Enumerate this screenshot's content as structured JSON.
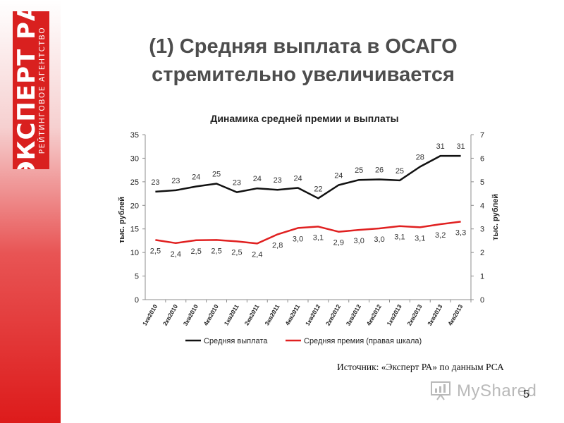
{
  "logo": {
    "main": "ЭКСПЕРТ РА",
    "sub": "РЕЙТИНГОВОЕ АГЕНТСТВО"
  },
  "slide": {
    "title_line1": "(1) Средняя выплата в ОСАГО",
    "title_line2": "стремительно увеличивается",
    "source": "Источник: «Эксперт РА» по данным РСА",
    "page_number": "5",
    "watermark": "MyShared"
  },
  "colors": {
    "brand_red": "#d9201f",
    "series_payout": "#111111",
    "series_premium": "#e02020"
  },
  "chart_data": {
    "type": "line",
    "title": "Динамика средней премии и выплаты",
    "ylabel": "тыс. рублей",
    "y2label": "тыс. рублей",
    "ylim": [
      0,
      35
    ],
    "y_ticks": [
      "0",
      "5",
      "10",
      "15",
      "20",
      "25",
      "30",
      "35"
    ],
    "y2lim": [
      0,
      7
    ],
    "y2_ticks": [
      "0",
      "1",
      "2",
      "3",
      "4",
      "5",
      "6",
      "7"
    ],
    "grid": false,
    "legend_position": "bottom",
    "categories": [
      "1кв2010",
      "2кв2010",
      "3кв2010",
      "4кв2010",
      "1кв2011",
      "2кв2011",
      "3кв2011",
      "4кв2011",
      "1кв2012",
      "2кв2012",
      "3кв2012",
      "4кв2012",
      "1кв2013",
      "2кв2013",
      "3кв2013",
      "4кв2013"
    ],
    "series": [
      {
        "name": "Средняя выплата",
        "axis": "left",
        "values": [
          22.9,
          23.2,
          24.0,
          24.6,
          22.8,
          23.6,
          23.3,
          23.7,
          21.5,
          24.3,
          25.4,
          25.5,
          25.3,
          28.2,
          30.5,
          30.5
        ],
        "labels": [
          "23",
          "23",
          "24",
          "25",
          "23",
          "24",
          "23",
          "24",
          "22",
          "24",
          "25",
          "26",
          "25",
          "28",
          "31",
          "31"
        ]
      },
      {
        "name": "Средняя премия (правая шкала)",
        "axis": "right",
        "values": [
          2.53,
          2.4,
          2.52,
          2.53,
          2.47,
          2.38,
          2.77,
          3.04,
          3.1,
          2.88,
          2.96,
          3.02,
          3.12,
          3.07,
          3.2,
          3.31
        ],
        "labels": [
          "2,5",
          "2,4",
          "2,5",
          "2,5",
          "2,5",
          "2,4",
          "2,8",
          "3,0",
          "3,1",
          "2,9",
          "3,0",
          "3,0",
          "3,1",
          "3,1",
          "3,2",
          "3,3"
        ]
      }
    ]
  }
}
